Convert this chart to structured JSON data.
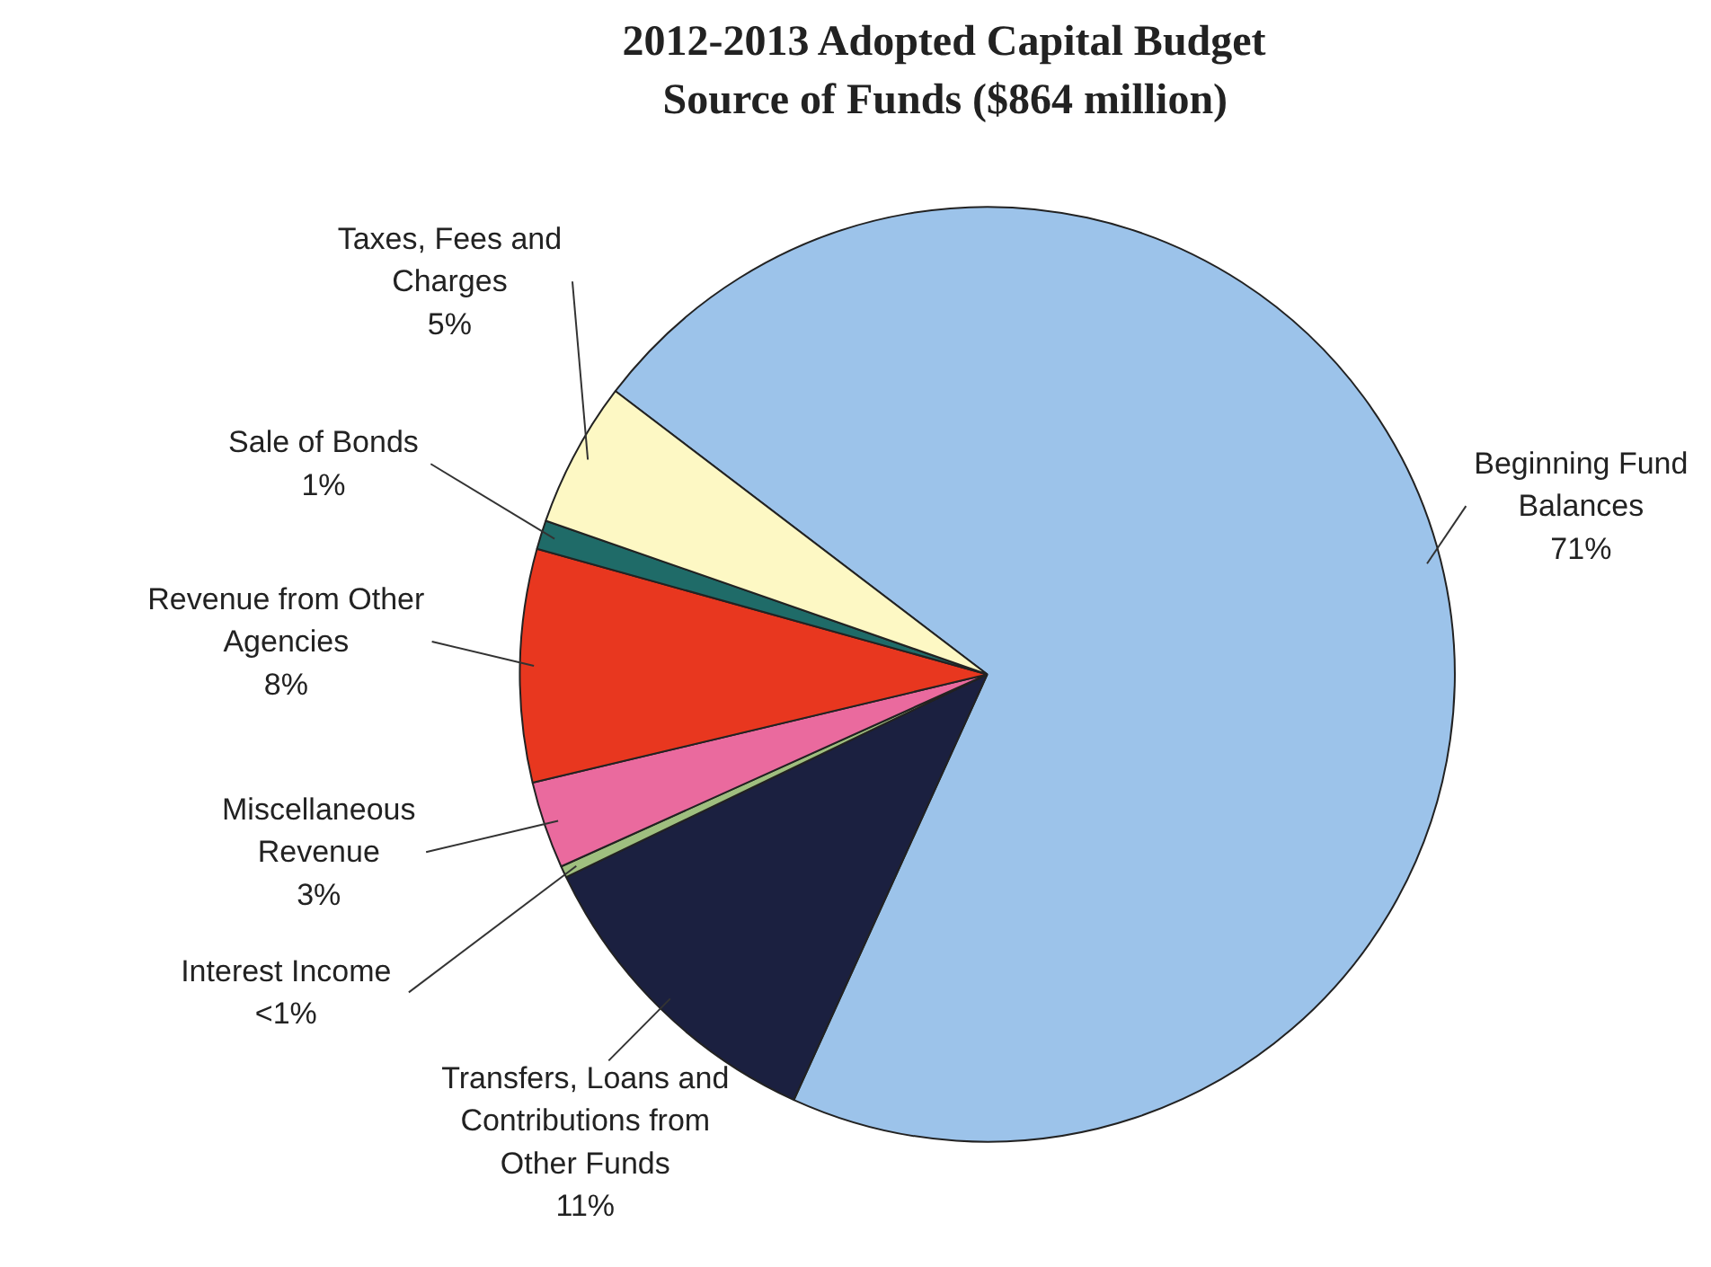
{
  "chart_data": {
    "type": "pie",
    "title": "2012-2013 Adopted Capital Budget\nSource of Funds ($864 million)",
    "categories": [
      "Beginning Fund Balances",
      "Transfers, Loans and Contributions from Other Funds",
      "Interest Income",
      "Miscellaneous Revenue",
      "Revenue from Other Agencies",
      "Sale of Bonds",
      "Taxes, Fees and Charges"
    ],
    "values": [
      71,
      11,
      0.4,
      3,
      8,
      1,
      5
    ],
    "value_labels": [
      "71%",
      "11%",
      "<1%",
      "3%",
      "8%",
      "1%",
      "5%"
    ],
    "colors": [
      "#9cc3ea",
      "#1b2040",
      "#9fbf7f",
      "#ea6a9e",
      "#e8371f",
      "#1f6b68",
      "#fdf8c4"
    ]
  }
}
